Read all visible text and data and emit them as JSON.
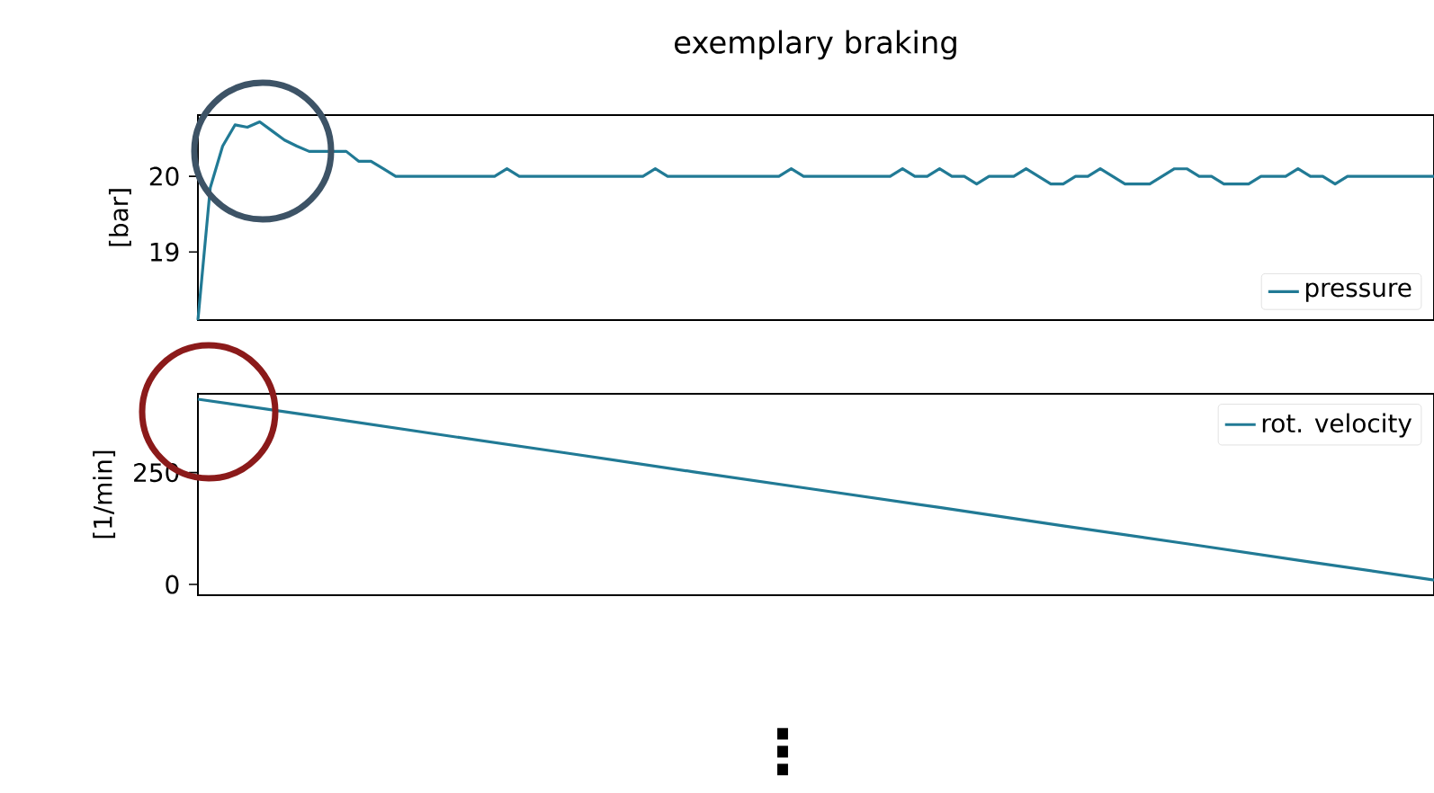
{
  "chart_data": [
    {
      "type": "line",
      "title": "exemplary braking",
      "ylabel": "[bar]",
      "ylim": [
        18.1,
        20.81
      ],
      "yticks": [
        19,
        20
      ],
      "tick_labels": "y",
      "legend": "bottom right",
      "annotations": [
        "⋮"
      ],
      "categories": [
        null,
        null,
        null,
        null,
        null,
        null,
        null,
        null,
        null,
        null,
        null,
        null,
        null,
        null,
        null,
        null,
        null,
        null,
        null,
        null,
        null,
        null,
        null,
        null,
        null,
        null,
        null,
        null,
        null,
        null,
        null,
        null,
        null,
        null,
        null,
        null,
        null,
        null,
        null,
        null,
        null,
        null,
        null,
        null,
        null,
        null,
        null,
        null,
        null,
        null,
        null,
        null,
        null,
        null,
        null,
        null,
        null,
        null,
        null,
        null,
        null,
        null,
        null,
        null,
        null,
        null,
        null,
        null,
        null,
        null,
        null,
        null,
        null,
        null,
        null,
        null,
        null,
        null,
        null,
        null,
        null,
        null,
        null,
        null,
        null,
        null,
        null,
        null,
        null,
        null,
        null,
        null,
        null,
        null,
        null,
        null,
        null,
        null,
        null,
        null,
        null
      ],
      "series": [
        {
          "name": "pressure",
          "color": "#217a95",
          "values": [
            18.1,
            19.85,
            20.4,
            20.68,
            20.65,
            20.72,
            20.6,
            20.48,
            20.4,
            20.33,
            20.33,
            20.33,
            20.33,
            20.2,
            20.2,
            20.1,
            20.0,
            20.0,
            20.0,
            20.0,
            20.0,
            20.0,
            20.0,
            20.0,
            20.0,
            20.1,
            20.0,
            20.0,
            20.0,
            20.0,
            20.0,
            20.0,
            20.0,
            20.0,
            20.0,
            20.0,
            20.0,
            20.1,
            20.0,
            20.0,
            20.0,
            20.0,
            20.0,
            20.0,
            20.0,
            20.0,
            20.0,
            20.0,
            20.1,
            20.0,
            20.0,
            20.0,
            20.0,
            20.0,
            20.0,
            20.0,
            20.0,
            20.1,
            20.0,
            20.0,
            20.1,
            20.0,
            20.0,
            19.9,
            20.0,
            20.0,
            20.0,
            20.1,
            20.0,
            19.9,
            19.9,
            20.0,
            20.0,
            20.1,
            20.0,
            19.9,
            19.9,
            19.9,
            20.0,
            20.1,
            20.1,
            20.0,
            20.0,
            19.9,
            19.9,
            19.9,
            20.0,
            20.0,
            20.0,
            20.1,
            20.0,
            20.0,
            19.9,
            20.0,
            20.0,
            20.0,
            20.0,
            20.0,
            20.0,
            20.0,
            20.0
          ]
        }
      ]
    },
    {
      "type": "line",
      "ylabel": "[1/min]",
      "ylim": [
        -24,
        426
      ],
      "yticks": [
        0,
        250
      ],
      "tick_labels": "y",
      "legend": "top right",
      "categories": [
        null,
        null,
        null,
        null,
        null,
        null,
        null,
        null,
        null,
        null,
        null
      ],
      "series": [
        {
          "name": "rot. velocity",
          "color": "#217a95",
          "values": [
            414,
            374,
            333,
            293,
            252,
            212,
            172,
            131,
            91,
            50,
            10
          ]
        }
      ]
    }
  ]
}
